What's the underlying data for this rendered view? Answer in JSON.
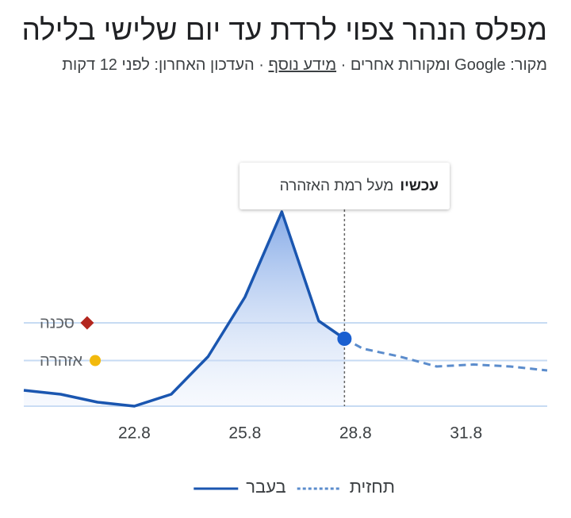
{
  "chart_data": {
    "type": "line",
    "title": "מפלס הנהר צפוי לרדת עד יום שלישי בלילה",
    "source": [
      "מקור: Google ומקורות אחרים · ",
      "מידע נוסף",
      " · העדכון האחרון: לפני 12 דקות"
    ],
    "annotation": {
      "label": "עכשיו",
      "text": "מעל רמת האזהרה"
    },
    "thresholds": [
      {
        "name": "סכנה",
        "value": 42,
        "color": "#b3261e"
      },
      {
        "name": "אזהרה",
        "value": 23,
        "color": "#f2b90c"
      }
    ],
    "series": [
      {
        "name": "בעבר",
        "color": "#1a56b0",
        "style": "solid",
        "x": [
          19,
          20,
          21,
          22,
          23,
          24,
          25,
          26,
          27,
          27.7
        ],
        "values": [
          8,
          6,
          2,
          0,
          6,
          25,
          55,
          98,
          43,
          34
        ]
      },
      {
        "name": "תחזית",
        "color": "#5b8ccc",
        "style": "dashed",
        "x": [
          27.7,
          28.2,
          29.2,
          30.2,
          31.2,
          32.2,
          33.2
        ],
        "values": [
          34,
          29,
          25,
          20,
          21,
          20,
          18
        ]
      }
    ],
    "xlim": [
      19,
      33.2
    ],
    "xticks": [
      {
        "value": 22,
        "label": "22.8"
      },
      {
        "value": 25,
        "label": "25.8"
      },
      {
        "value": 28,
        "label": "28.8"
      },
      {
        "value": 31,
        "label": "31.8"
      }
    ],
    "ylim": [
      0,
      100
    ]
  }
}
